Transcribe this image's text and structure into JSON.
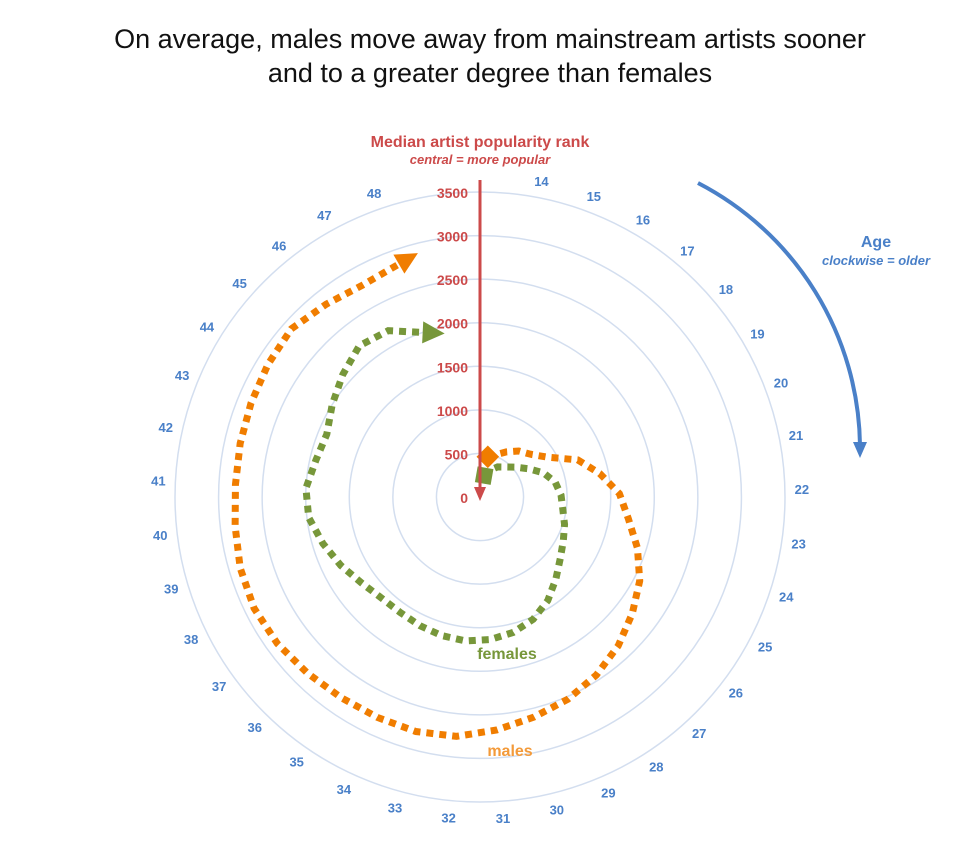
{
  "title_line1": "On average, males move away from mainstream artists sooner",
  "title_line2": "and to a greater degree than females",
  "chart_data": {
    "type": "radar-line",
    "title": "On average, males move away from mainstream artists sooner and to a greater degree than females",
    "radial_axis": {
      "label": "Median artist popularity rank",
      "sublabel": "central = more popular",
      "range": [
        0,
        3500
      ],
      "ticks": [
        0,
        500,
        1000,
        1500,
        2000,
        2500,
        3000,
        3500
      ]
    },
    "angular_axis": {
      "label": "Age",
      "sublabel": "clockwise = older",
      "categories": [
        14,
        15,
        16,
        17,
        18,
        19,
        20,
        21,
        22,
        23,
        24,
        25,
        26,
        27,
        28,
        29,
        30,
        31,
        32,
        33,
        34,
        35,
        36,
        37,
        38,
        39,
        40,
        41,
        42,
        43,
        44,
        45,
        46,
        47,
        48
      ]
    },
    "grid": true,
    "series": [
      {
        "name": "males",
        "color": "#f07d00",
        "values": [
          470,
          520,
          600,
          690,
          760,
          900,
          1200,
          1400,
          1600,
          1720,
          1900,
          2070,
          2200,
          2330,
          2440,
          2530,
          2600,
          2680,
          2760,
          2790,
          2790,
          2800,
          2830,
          2870,
          2890,
          2870,
          2830,
          2810,
          2820,
          2840,
          2870,
          2900,
          2830,
          2780,
          2830
        ]
      },
      {
        "name": "females",
        "color": "#77973a",
        "values": [
          250,
          330,
          400,
          450,
          530,
          640,
          780,
          880,
          930,
          960,
          1020,
          1080,
          1160,
          1280,
          1420,
          1530,
          1600,
          1640,
          1660,
          1650,
          1630,
          1610,
          1620,
          1680,
          1780,
          1880,
          1980,
          2000,
          1930,
          1900,
          2000,
          2110,
          2220,
          2180,
          2000
        ]
      }
    ]
  },
  "colors": {
    "axis": "#cc4a4a",
    "age": "#4a80c8",
    "grid": "#d3deef"
  }
}
